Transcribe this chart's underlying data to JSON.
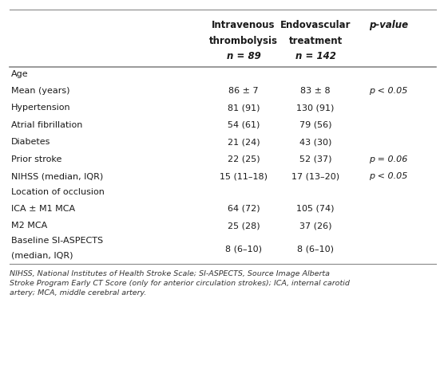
{
  "col1_header": [
    "Intravenous",
    "thrombolysis",
    "n = 89"
  ],
  "col2_header": [
    "Endovascular",
    "treatment",
    "n = 142"
  ],
  "col3_header": "p-value",
  "rows": [
    {
      "label": "Age",
      "is_category": true,
      "col1": "",
      "col2": "",
      "pval": ""
    },
    {
      "label": "Mean (years)",
      "is_category": false,
      "col1": "86 ± 7",
      "col2": "83 ± 8",
      "pval": "p < 0.05"
    },
    {
      "label": "Hypertension",
      "is_category": false,
      "col1": "81 (91)",
      "col2": "130 (91)",
      "pval": ""
    },
    {
      "label": "Atrial fibrillation",
      "is_category": false,
      "col1": "54 (61)",
      "col2": "79 (56)",
      "pval": ""
    },
    {
      "label": "Diabetes",
      "is_category": false,
      "col1": "21 (24)",
      "col2": "43 (30)",
      "pval": ""
    },
    {
      "label": "Prior stroke",
      "is_category": false,
      "col1": "22 (25)",
      "col2": "52 (37)",
      "pval": "p = 0.06"
    },
    {
      "label": "NIHSS (median, IQR)",
      "is_category": false,
      "col1": "15 (11–18)",
      "col2": "17 (13–20)",
      "pval": "p < 0.05"
    },
    {
      "label": "Location of occlusion",
      "is_category": true,
      "col1": "",
      "col2": "",
      "pval": ""
    },
    {
      "label": "ICA ± M1 MCA",
      "is_category": false,
      "col1": "64 (72)",
      "col2": "105 (74)",
      "pval": ""
    },
    {
      "label": "M2 MCA",
      "is_category": false,
      "col1": "25 (28)",
      "col2": "37 (26)",
      "pval": ""
    },
    {
      "label": "Baseline SI-ASPECTS\n(median, IQR)",
      "is_category": false,
      "col1": "8 (6–10)",
      "col2": "8 (6–10)",
      "pval": ""
    }
  ],
  "footnote": "NIHSS, National Institutes of Health Stroke Scale; SI-ASPECTS, Source Image Alberta\nStroke Program Early CT Score (only for anterior circulation strokes); ICA, internal carotid\nartery; MCA, middle cerebral artery.",
  "bg_color": "#ffffff",
  "text_color": "#1a1a1a",
  "line_color": "#888888",
  "font_size": 8.0,
  "footnote_font_size": 6.8,
  "header_font_size": 8.5,
  "fig_width": 5.56,
  "fig_height": 4.88,
  "dpi": 100
}
